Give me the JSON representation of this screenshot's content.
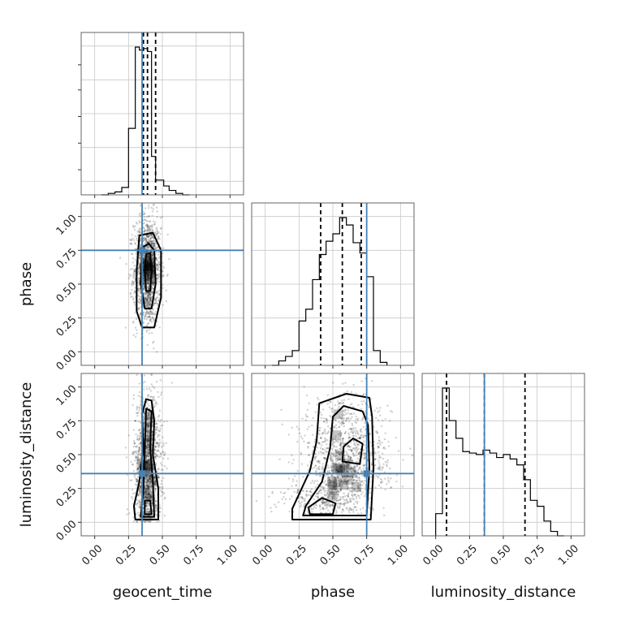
{
  "chart_data": {
    "type": "corner",
    "parameters": [
      "geocent_time",
      "phase",
      "luminosity_distance"
    ],
    "ticks": [
      "0.00",
      "0.25",
      "0.50",
      "0.75",
      "1.00"
    ],
    "tick_values": [
      0,
      0.25,
      0.5,
      0.75,
      1.0
    ],
    "xlim": [
      -0.1,
      1.1
    ],
    "ylim": [
      -0.1,
      1.1
    ],
    "grid": true,
    "truths": {
      "geocent_time": 0.35,
      "phase": 0.75,
      "luminosity_distance": 0.36
    },
    "colors": {
      "truth": "#4682b4",
      "hist": "#000000",
      "grid": "#c8c8c8"
    },
    "histograms": {
      "geocent_time": {
        "bin_edges": [
          0.05,
          0.1,
          0.15,
          0.2,
          0.25,
          0.3,
          0.33,
          0.36,
          0.39,
          0.42,
          0.45,
          0.48,
          0.51,
          0.55,
          0.6,
          0.65,
          0.7
        ],
        "counts": [
          0.0,
          0.01,
          0.02,
          0.05,
          0.45,
          1.0,
          0.98,
          0.99,
          0.97,
          0.26,
          0.1,
          0.1,
          0.06,
          0.03,
          0.01,
          0.0
        ],
        "quantiles": [
          0.36,
          0.39,
          0.45
        ]
      },
      "phase": {
        "bin_edges": [
          0.05,
          0.1,
          0.15,
          0.2,
          0.25,
          0.3,
          0.35,
          0.4,
          0.45,
          0.5,
          0.55,
          0.6,
          0.65,
          0.7,
          0.75,
          0.8,
          0.85,
          0.9
        ],
        "counts": [
          0.0,
          0.03,
          0.06,
          0.1,
          0.3,
          0.38,
          0.58,
          0.75,
          0.84,
          0.89,
          1.0,
          0.95,
          0.83,
          0.76,
          0.6,
          0.1,
          0.02
        ],
        "quantiles": [
          0.41,
          0.57,
          0.71
        ]
      },
      "luminosity_distance": {
        "bin_edges": [
          0.0,
          0.05,
          0.1,
          0.15,
          0.2,
          0.25,
          0.3,
          0.35,
          0.4,
          0.45,
          0.5,
          0.55,
          0.6,
          0.65,
          0.7,
          0.75,
          0.8,
          0.85,
          0.9,
          0.95
        ],
        "counts": [
          0.15,
          1.0,
          0.78,
          0.66,
          0.57,
          0.56,
          0.55,
          0.58,
          0.56,
          0.53,
          0.55,
          0.52,
          0.48,
          0.38,
          0.24,
          0.2,
          0.1,
          0.03,
          0.0
        ],
        "quantiles": [
          0.08,
          0.36,
          0.66
        ]
      }
    },
    "contours": {
      "phase_vs_geocent_time": [
        {
          "level": "outer",
          "points": [
            [
              0.35,
              0.18
            ],
            [
              0.44,
              0.18
            ],
            [
              0.49,
              0.4
            ],
            [
              0.49,
              0.75
            ],
            [
              0.43,
              0.88
            ],
            [
              0.33,
              0.86
            ],
            [
              0.31,
              0.6
            ],
            [
              0.31,
              0.3
            ]
          ]
        },
        {
          "level": "mid",
          "points": [
            [
              0.37,
              0.32
            ],
            [
              0.42,
              0.32
            ],
            [
              0.45,
              0.5
            ],
            [
              0.44,
              0.75
            ],
            [
              0.4,
              0.8
            ],
            [
              0.35,
              0.77
            ],
            [
              0.34,
              0.5
            ]
          ]
        },
        {
          "level": "inner",
          "points": [
            [
              0.38,
              0.45
            ],
            [
              0.41,
              0.45
            ],
            [
              0.42,
              0.6
            ],
            [
              0.41,
              0.73
            ],
            [
              0.38,
              0.72
            ],
            [
              0.37,
              0.6
            ]
          ]
        }
      ],
      "luminosity_distance_vs_geocent_time": [
        {
          "level": "outer",
          "points": [
            [
              0.3,
              0.02
            ],
            [
              0.47,
              0.02
            ],
            [
              0.47,
              0.25
            ],
            [
              0.43,
              0.5
            ],
            [
              0.44,
              0.75
            ],
            [
              0.42,
              0.9
            ],
            [
              0.38,
              0.91
            ],
            [
              0.35,
              0.8
            ],
            [
              0.36,
              0.55
            ],
            [
              0.33,
              0.3
            ],
            [
              0.29,
              0.12
            ]
          ]
        },
        {
          "level": "mid",
          "points": [
            [
              0.34,
              0.04
            ],
            [
              0.44,
              0.04
            ],
            [
              0.43,
              0.3
            ],
            [
              0.41,
              0.55
            ],
            [
              0.42,
              0.82
            ],
            [
              0.38,
              0.84
            ],
            [
              0.37,
              0.55
            ],
            [
              0.36,
              0.25
            ]
          ]
        },
        {
          "level": "inner",
          "points": [
            [
              0.37,
              0.06
            ],
            [
              0.42,
              0.06
            ],
            [
              0.41,
              0.16
            ],
            [
              0.37,
              0.16
            ]
          ]
        }
      ],
      "luminosity_distance_vs_phase": [
        {
          "level": "outer",
          "points": [
            [
              0.2,
              0.02
            ],
            [
              0.78,
              0.02
            ],
            [
              0.8,
              0.4
            ],
            [
              0.79,
              0.78
            ],
            [
              0.77,
              0.92
            ],
            [
              0.6,
              0.95
            ],
            [
              0.4,
              0.88
            ],
            [
              0.38,
              0.6
            ],
            [
              0.33,
              0.38
            ],
            [
              0.2,
              0.1
            ]
          ]
        },
        {
          "level": "mid",
          "points": [
            [
              0.28,
              0.05
            ],
            [
              0.75,
              0.05
            ],
            [
              0.77,
              0.4
            ],
            [
              0.76,
              0.72
            ],
            [
              0.72,
              0.82
            ],
            [
              0.58,
              0.86
            ],
            [
              0.5,
              0.78
            ],
            [
              0.48,
              0.55
            ],
            [
              0.42,
              0.3
            ],
            [
              0.3,
              0.12
            ]
          ]
        },
        {
          "level": "inner1",
          "points": [
            [
              0.33,
              0.06
            ],
            [
              0.5,
              0.06
            ],
            [
              0.52,
              0.14
            ],
            [
              0.42,
              0.18
            ],
            [
              0.32,
              0.11
            ]
          ]
        },
        {
          "level": "inner2",
          "points": [
            [
              0.57,
              0.45
            ],
            [
              0.7,
              0.43
            ],
            [
              0.72,
              0.58
            ],
            [
              0.65,
              0.62
            ],
            [
              0.58,
              0.56
            ]
          ]
        }
      ]
    }
  }
}
